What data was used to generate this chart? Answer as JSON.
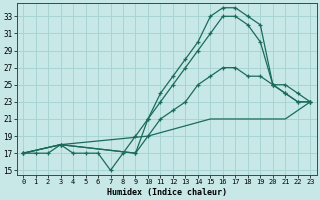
{
  "xlabel": "Humidex (Indice chaleur)",
  "bg_color": "#c8e8e8",
  "grid_color": "#a8d4d4",
  "line_color": "#1a6b5a",
  "xlim": [
    -0.5,
    23.5
  ],
  "ylim": [
    14.5,
    34.5
  ],
  "xticks": [
    0,
    1,
    2,
    3,
    4,
    5,
    6,
    7,
    8,
    9,
    10,
    11,
    12,
    13,
    14,
    15,
    16,
    17,
    18,
    19,
    20,
    21,
    22,
    23
  ],
  "yticks": [
    15,
    17,
    19,
    21,
    23,
    25,
    27,
    29,
    31,
    33
  ],
  "line1_x": [
    0,
    1,
    2,
    3,
    4,
    5,
    6,
    7,
    8,
    9,
    10,
    11,
    12,
    13,
    14,
    15,
    16,
    17,
    18,
    19,
    20,
    21,
    22,
    23
  ],
  "line1_y": [
    17,
    17,
    17,
    18,
    17,
    17,
    17,
    15,
    17,
    19,
    21,
    24,
    26,
    28,
    30,
    33,
    34,
    34,
    33,
    32,
    25,
    24,
    23,
    23
  ],
  "line2_x": [
    0,
    3,
    9,
    10,
    11,
    12,
    13,
    14,
    15,
    16,
    17,
    18,
    19,
    20,
    21,
    22,
    23
  ],
  "line2_y": [
    17,
    18,
    17,
    21,
    23,
    25,
    27,
    29,
    31,
    33,
    33,
    32,
    30,
    25,
    24,
    23,
    23
  ],
  "line3_x": [
    0,
    3,
    9,
    10,
    11,
    12,
    13,
    14,
    15,
    16,
    17,
    18,
    19,
    20,
    21,
    22,
    23
  ],
  "line3_y": [
    17,
    18,
    17,
    19,
    21,
    22,
    23,
    25,
    26,
    27,
    27,
    26,
    26,
    25,
    25,
    24,
    23
  ],
  "line4_x": [
    0,
    3,
    10,
    15,
    16,
    17,
    18,
    19,
    20,
    21,
    22,
    23
  ],
  "line4_y": [
    17,
    18,
    19,
    21,
    21,
    21,
    21,
    21,
    21,
    21,
    22,
    23
  ]
}
